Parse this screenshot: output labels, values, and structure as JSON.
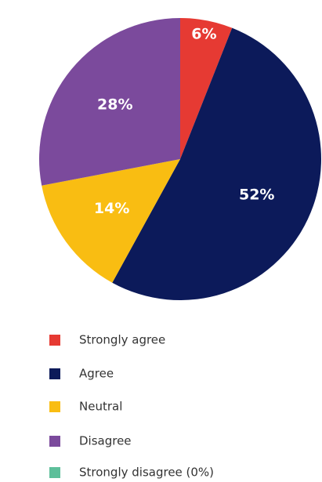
{
  "chart_data": {
    "type": "pie",
    "categories": [
      "Strongly agree",
      "Agree",
      "Neutral",
      "Disagree",
      "Strongly disagree (0%)"
    ],
    "values": [
      6,
      52,
      14,
      28,
      0
    ],
    "value_labels": [
      "6%",
      "52%",
      "14%",
      "28%",
      null
    ],
    "colors": [
      "#e63a33",
      "#0c1a5a",
      "#f9bd12",
      "#7b4a9c",
      "#5dbf9a"
    ],
    "legend": "bottom"
  }
}
